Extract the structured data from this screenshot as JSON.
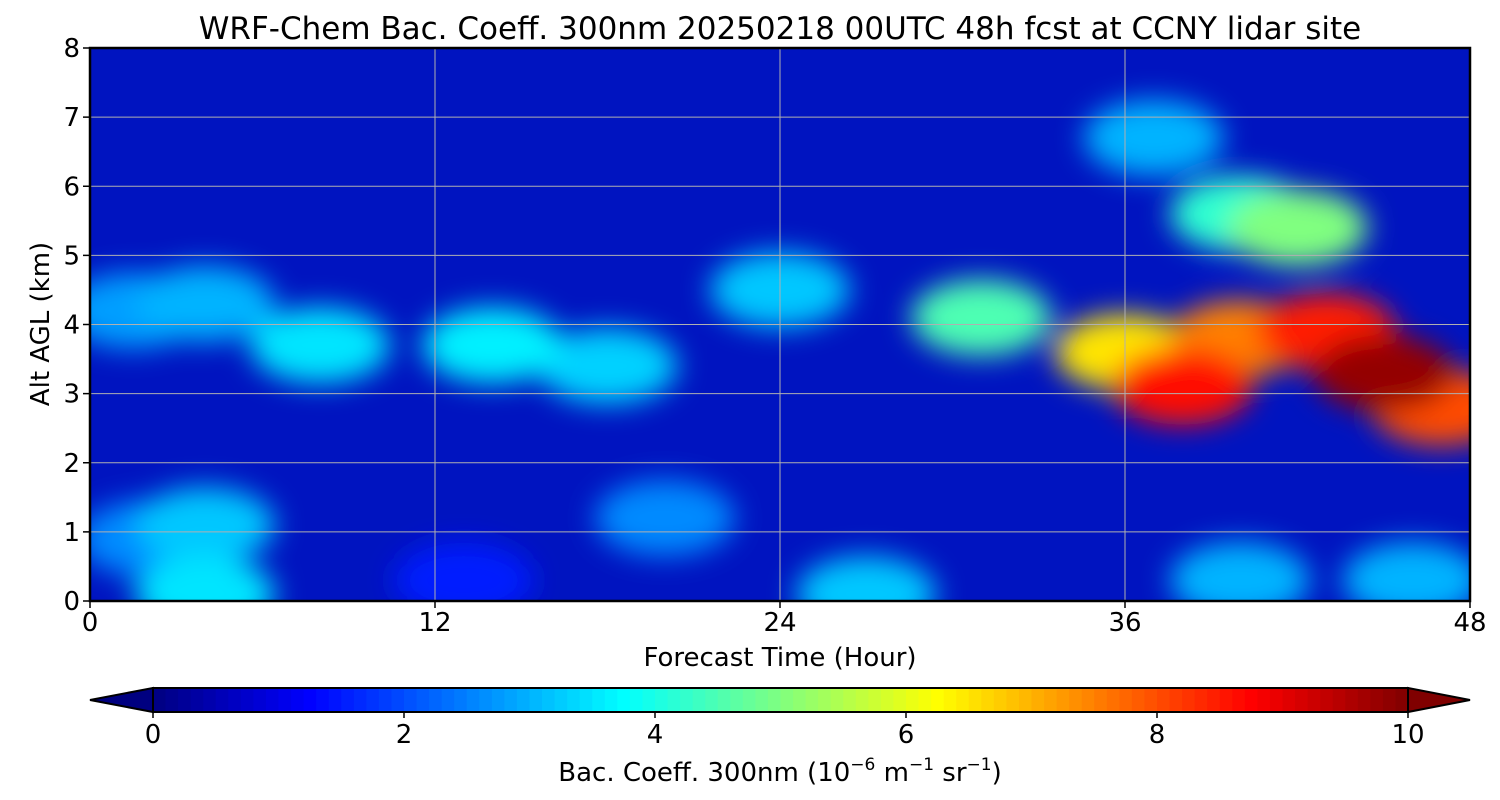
{
  "chart_data": {
    "type": "heatmap",
    "title": "WRF-Chem Bac. Coeff. 300nm  20250218 00UTC 48h fcst at CCNY lidar site",
    "xlabel": "Forecast Time (Hour)",
    "ylabel": "Alt AGL (km)",
    "xlim": [
      0,
      48
    ],
    "ylim": [
      0,
      8
    ],
    "xticks": [
      "0",
      "12",
      "24",
      "36",
      "48"
    ],
    "yticks": [
      "0",
      "1",
      "2",
      "3",
      "4",
      "5",
      "6",
      "7",
      "8"
    ],
    "grid": true,
    "colormap": "jet",
    "colorbar": {
      "orientation": "horizontal",
      "position": "bottom",
      "range": [
        0,
        10
      ],
      "extend": "both",
      "ticks": [
        "0",
        "2",
        "4",
        "6",
        "8",
        "10"
      ],
      "label": "Bac. Coeff. 300nm  (10",
      "label_exp1": "−6",
      "label_mid": " m",
      "label_exp2": "−1",
      "label_mid2": " sr",
      "label_exp3": "−1",
      "label_end": ")"
    },
    "features": [
      {
        "x": 14,
        "y": 3.7,
        "value": 3.6
      },
      {
        "x": 8,
        "y": 3.7,
        "value": 3.5
      },
      {
        "x": 4,
        "y": 4.3,
        "value": 3.0
      },
      {
        "x": 1.5,
        "y": 4.2,
        "value": 2.8
      },
      {
        "x": 18,
        "y": 3.4,
        "value": 3.3
      },
      {
        "x": 24,
        "y": 4.5,
        "value": 3.2
      },
      {
        "x": 31,
        "y": 4.1,
        "value": 4.5
      },
      {
        "x": 36,
        "y": 3.6,
        "value": 6.5
      },
      {
        "x": 38,
        "y": 3.1,
        "value": 8.6
      },
      {
        "x": 40,
        "y": 3.8,
        "value": 7.5
      },
      {
        "x": 43,
        "y": 3.9,
        "value": 8.5
      },
      {
        "x": 45,
        "y": 3.3,
        "value": 9.8
      },
      {
        "x": 47,
        "y": 2.8,
        "value": 8.0
      },
      {
        "x": 42,
        "y": 5.4,
        "value": 5.0
      },
      {
        "x": 40,
        "y": 5.6,
        "value": 4.2
      },
      {
        "x": 37,
        "y": 6.7,
        "value": 3.0
      },
      {
        "x": 4,
        "y": 1.1,
        "value": 3.2
      },
      {
        "x": 2,
        "y": 0.9,
        "value": 2.6
      },
      {
        "x": 4,
        "y": 0.1,
        "value": 3.5
      },
      {
        "x": 20,
        "y": 1.2,
        "value": 2.6
      },
      {
        "x": 27,
        "y": 0.1,
        "value": 3.2
      },
      {
        "x": 40,
        "y": 0.3,
        "value": 3.0
      },
      {
        "x": 46,
        "y": 0.3,
        "value": 3.0
      },
      {
        "x": 13,
        "y": 0.3,
        "value": 1.5
      }
    ]
  }
}
